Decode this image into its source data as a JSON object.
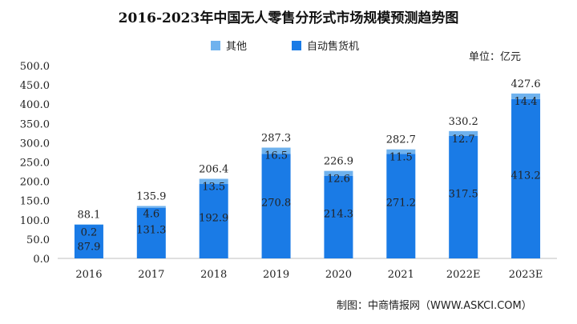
{
  "chart_data": {
    "type": "bar",
    "stacked": true,
    "title": "2016-2023年中国无人零售分形式市场规模预测趋势图",
    "unit": "单位：亿元",
    "categories": [
      "2016",
      "2017",
      "2018",
      "2019",
      "2020",
      "2021",
      "2022E",
      "2023E"
    ],
    "series": [
      {
        "name": "自动售货机",
        "color": "#1a7be6",
        "values": [
          87.9,
          131.3,
          192.9,
          270.8,
          214.3,
          271.2,
          317.5,
          413.2
        ]
      },
      {
        "name": "其他",
        "color": "#6fb2ee",
        "values": [
          0.2,
          4.6,
          13.5,
          16.5,
          12.6,
          11.5,
          12.7,
          14.4
        ]
      }
    ],
    "totals": [
      88.1,
      135.9,
      206.4,
      287.3,
      226.9,
      282.7,
      330.2,
      427.6
    ],
    "legend": [
      "其他",
      "自动售货机"
    ],
    "legend_position": "top-center",
    "ylim": [
      0,
      500
    ],
    "yticks": [
      "0.0",
      "50.0",
      "100.0",
      "150.0",
      "200.0",
      "250.0",
      "300.0",
      "350.0",
      "400.0",
      "450.0",
      "500.0"
    ],
    "grid": false,
    "source": "制图：中商情报网（WWW.ASKCI.COM）"
  }
}
